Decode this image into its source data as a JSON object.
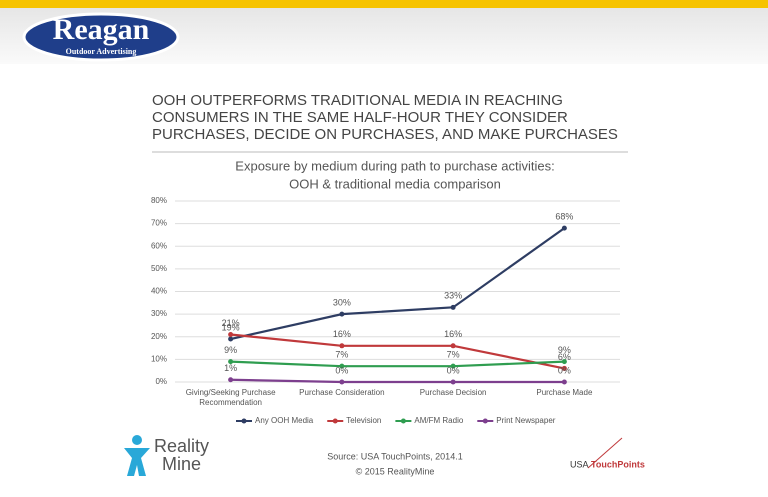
{
  "header": {
    "logo": "Reagan",
    "logo_sub": "Outdoor Advertising"
  },
  "heading": [
    "OOH OUTPERFORMS TRADITIONAL MEDIA IN REACHING",
    "CONSUMERS IN THE SAME HALF-HOUR THEY CONSIDER",
    "PURCHASES, DECIDE ON PURCHASES, AND MAKE PURCHASES"
  ],
  "chart_data": {
    "type": "line",
    "title": "Exposure by medium during path to purchase activities:",
    "subtitle": "OOH & traditional media comparison",
    "categories": [
      "Giving/Seeking Purchase Recommendation",
      "Purchase Consideration",
      "Purchase Decision",
      "Purchase Made"
    ],
    "series": [
      {
        "name": "Any OOH Media",
        "color": "#2e3d63",
        "values": [
          19,
          30,
          33,
          68
        ],
        "value_labels": [
          "19%",
          "30%",
          "33%",
          "68%"
        ]
      },
      {
        "name": "Television",
        "color": "#c0393b",
        "values": [
          21,
          16,
          16,
          6
        ],
        "value_labels": [
          "21%",
          "16%",
          "16%",
          "6%"
        ]
      },
      {
        "name": "AM/FM Radio",
        "color": "#2f9d50",
        "values": [
          9,
          7,
          7,
          9
        ],
        "value_labels": [
          "9%",
          "7%",
          "7%",
          "9%"
        ]
      },
      {
        "name": "Print Newspaper",
        "color": "#7d3f8e",
        "values": [
          1,
          0,
          0,
          0
        ],
        "value_labels": [
          "1%",
          "0%",
          "0%",
          "0%"
        ]
      }
    ],
    "ylim": [
      0,
      80
    ],
    "yticks": [
      {
        "value": 0,
        "label": "0%"
      },
      {
        "value": 10,
        "label": "10%"
      },
      {
        "value": 20,
        "label": "20%"
      },
      {
        "value": 30,
        "label": "30%"
      },
      {
        "value": 40,
        "label": "40%"
      },
      {
        "value": 50,
        "label": "50%"
      },
      {
        "value": 60,
        "label": "60%"
      },
      {
        "value": 70,
        "label": "70%"
      },
      {
        "value": 80,
        "label": "80%"
      }
    ],
    "grid": true,
    "legend": "bottom"
  },
  "footer": {
    "brand_left": [
      "Reality",
      "Mine"
    ],
    "source": "Source: USA TouchPoints, 2014.1",
    "copyright": "© 2015 RealityMine",
    "brand_right": [
      "USA",
      "TouchPoints"
    ]
  }
}
